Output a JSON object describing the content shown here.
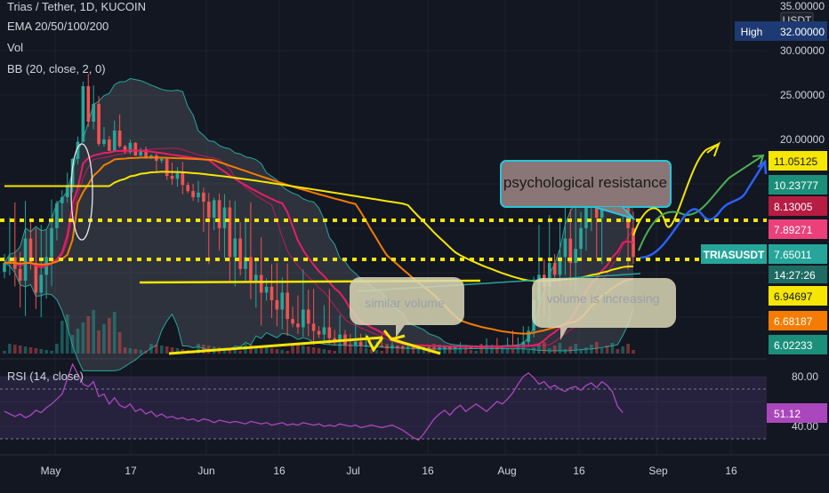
{
  "header": {
    "symbol": "Trias / Tether, 1D, KUCOIN",
    "ema": "EMA 20/50/100/200",
    "vol": "Vol",
    "bb": "BB (20, close, 2, 0)",
    "rsi": "RSI (14, close)"
  },
  "corner": {
    "currency": "USDT",
    "high_label": "High",
    "high_value": "32.00000"
  },
  "price_ticks": [
    "35.00000",
    "30.00000",
    "25.00000",
    "20.00000"
  ],
  "price_tags": [
    {
      "value": "11.05125",
      "bg": "#f7e600",
      "fg": "#131722"
    },
    {
      "value": "10.23777",
      "bg": "#1b8f7a",
      "fg": "#ffffff"
    },
    {
      "value": "8.13005",
      "bg": "#b71c43",
      "fg": "#ffffff"
    },
    {
      "value": "7.89271",
      "bg": "#ec407a",
      "fg": "#ffffff"
    },
    {
      "value": "7.65011",
      "bg": "#26a69a",
      "fg": "#ffffff"
    },
    {
      "value": "6.94697",
      "bg": "#f7e600",
      "fg": "#131722"
    },
    {
      "value": "6.68187",
      "bg": "#f57c00",
      "fg": "#ffffff"
    },
    {
      "value": "6.02233",
      "bg": "#1b8f7a",
      "fg": "#ffffff"
    }
  ],
  "ticker": {
    "symbol": "TRIASUSDT",
    "countdown": "14:27:26"
  },
  "rsi_ticks": [
    "80.00",
    "40.00"
  ],
  "rsi_value": "51.12",
  "x_ticks": [
    "May",
    "17",
    "Jun",
    "16",
    "Jul",
    "16",
    "Aug",
    "16",
    "Sep",
    "16"
  ],
  "annotations": {
    "psychological": "psychological resistance",
    "similar_volume": "similar volume",
    "volume_increasing": "volume is increasing"
  },
  "colors": {
    "up": "#26a69a",
    "down": "#ef5350",
    "ema20": "#e91e63",
    "ema50": "#f57c00",
    "ema100": "#f7e600",
    "bb": "#26a69a"
  },
  "chart_data": {
    "type": "candlestick",
    "ylim": [
      0,
      36
    ],
    "support_resistance": [
      8.13,
      6.6
    ],
    "close": [
      7.5,
      7.6,
      7.4,
      7.2,
      7.8,
      7.5,
      7.0,
      7.3,
      7.6,
      7.9,
      8.2,
      8.6,
      9.4,
      11.5,
      19.0,
      26.0,
      22.0,
      24.0,
      18.0,
      20.0,
      15.0,
      21.0,
      17.0,
      14.5,
      18.5,
      13.0,
      15.5,
      12.0,
      13.0,
      11.0,
      11.5,
      10.0,
      9.8,
      10.2,
      9.4,
      9.0,
      8.6,
      8.9,
      8.3,
      8.0,
      8.4,
      7.9,
      8.1,
      7.6,
      7.8,
      7.4,
      7.6,
      7.2,
      7.3,
      7.0,
      7.1,
      6.9,
      6.8,
      7.0,
      6.7,
      6.6,
      6.5,
      6.8,
      6.6,
      6.4,
      6.3,
      6.5,
      6.2,
      6.1,
      6.3,
      6.0,
      5.9,
      6.1,
      5.8,
      5.9,
      5.7,
      5.8,
      5.6,
      5.5,
      5.7,
      5.6,
      5.4,
      5.5,
      5.3,
      5.4,
      5.5,
      5.3,
      5.2,
      5.4,
      5.5,
      5.3,
      5.4,
      5.6,
      5.5,
      5.4,
      5.6,
      5.5,
      5.7,
      5.8,
      5.6,
      5.7,
      5.9,
      5.8,
      6.0,
      6.1,
      6.4,
      6.9,
      7.3,
      7.1,
      7.5,
      7.3,
      7.6,
      7.8,
      7.5,
      7.7,
      7.9,
      8.2,
      8.5,
      8.0,
      8.6,
      8.3,
      8.9,
      8.4,
      8.6,
      7.9,
      7.6
    ],
    "rsi": [
      52,
      50,
      48,
      50,
      47,
      49,
      53,
      51,
      55,
      58,
      62,
      66,
      78,
      90,
      82,
      74,
      72,
      76,
      64,
      66,
      58,
      63,
      57,
      55,
      58,
      52,
      54,
      50,
      52,
      48,
      50,
      47,
      48,
      46,
      47,
      45,
      46,
      44,
      46,
      45,
      43,
      45,
      44,
      43,
      44,
      43,
      42,
      44,
      43,
      42,
      43,
      41,
      42,
      43,
      41,
      42,
      41,
      43,
      42,
      41,
      42,
      40,
      41,
      40,
      42,
      41,
      40,
      41,
      39,
      40,
      41,
      40,
      39,
      40,
      41,
      39,
      37,
      34,
      31,
      29,
      34,
      40,
      46,
      50,
      53,
      49,
      54,
      57,
      52,
      55,
      58,
      55,
      52,
      56,
      60,
      58,
      62,
      67,
      74,
      80,
      83,
      79,
      74,
      76,
      71,
      73,
      70,
      68,
      71,
      72,
      69,
      73,
      75,
      71,
      76,
      73,
      68,
      56,
      51
    ]
  }
}
